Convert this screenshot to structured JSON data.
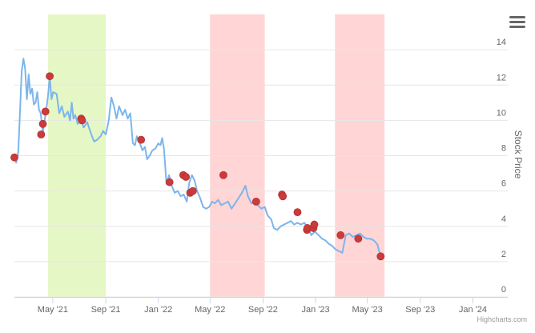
{
  "chart_data": {
    "type": "line",
    "ylabel": "Stock Price",
    "ylim": [
      0,
      16
    ],
    "yticks": [
      0,
      2,
      4,
      6,
      8,
      10,
      12,
      14
    ],
    "xlim": [
      "2021-02-01",
      "2024-03-22"
    ],
    "xticks": [
      {
        "date": "2021-05-01",
        "label": "May '21"
      },
      {
        "date": "2021-09-01",
        "label": "Sep '21"
      },
      {
        "date": "2022-01-01",
        "label": "Jan '22"
      },
      {
        "date": "2022-05-01",
        "label": "May '22"
      },
      {
        "date": "2022-09-01",
        "label": "Sep '22"
      },
      {
        "date": "2023-01-01",
        "label": "Jan '23"
      },
      {
        "date": "2023-05-01",
        "label": "May '23"
      },
      {
        "date": "2023-09-01",
        "label": "Sep '23"
      },
      {
        "date": "2024-01-01",
        "label": "Jan '24"
      }
    ],
    "grid": true,
    "series": [
      {
        "line_color": "#7cb5ec",
        "points": [
          [
            "2021-02-01",
            7.9
          ],
          [
            "2021-02-05",
            7.6
          ],
          [
            "2021-02-10",
            8.2
          ],
          [
            "2021-02-14",
            10.5
          ],
          [
            "2021-02-18",
            12.8
          ],
          [
            "2021-02-22",
            13.5
          ],
          [
            "2021-02-26",
            12.9
          ],
          [
            "2021-03-02",
            11.2
          ],
          [
            "2021-03-06",
            12.6
          ],
          [
            "2021-03-10",
            11.5
          ],
          [
            "2021-03-14",
            11.8
          ],
          [
            "2021-03-18",
            10.9
          ],
          [
            "2021-03-22",
            11.0
          ],
          [
            "2021-03-26",
            11.6
          ],
          [
            "2021-03-30",
            10.6
          ],
          [
            "2021-04-03",
            10.4
          ],
          [
            "2021-04-08",
            9.3
          ],
          [
            "2021-04-12",
            10.0
          ],
          [
            "2021-04-16",
            10.6
          ],
          [
            "2021-04-20",
            11.4
          ],
          [
            "2021-04-24",
            12.5
          ],
          [
            "2021-04-28",
            11.2
          ],
          [
            "2021-05-02",
            11.6
          ],
          [
            "2021-05-10",
            11.5
          ],
          [
            "2021-05-16",
            10.4
          ],
          [
            "2021-05-22",
            10.8
          ],
          [
            "2021-05-28",
            10.2
          ],
          [
            "2021-06-05",
            10.5
          ],
          [
            "2021-06-10",
            10.0
          ],
          [
            "2021-06-14",
            11.0
          ],
          [
            "2021-06-18",
            10.1
          ],
          [
            "2021-06-22",
            10.3
          ],
          [
            "2021-06-28",
            9.8
          ],
          [
            "2021-07-05",
            10.0
          ],
          [
            "2021-07-12",
            9.6
          ],
          [
            "2021-07-20",
            9.9
          ],
          [
            "2021-07-28",
            9.3
          ],
          [
            "2021-08-05",
            8.8
          ],
          [
            "2021-08-12",
            8.9
          ],
          [
            "2021-08-20",
            9.1
          ],
          [
            "2021-08-26",
            9.4
          ],
          [
            "2021-09-01",
            9.2
          ],
          [
            "2021-09-08",
            10.0
          ],
          [
            "2021-09-14",
            11.3
          ],
          [
            "2021-09-20",
            10.8
          ],
          [
            "2021-09-26",
            10.1
          ],
          [
            "2021-10-02",
            10.8
          ],
          [
            "2021-10-10",
            10.3
          ],
          [
            "2021-10-16",
            10.6
          ],
          [
            "2021-10-22",
            10.1
          ],
          [
            "2021-10-28",
            10.4
          ],
          [
            "2021-11-03",
            8.7
          ],
          [
            "2021-11-08",
            8.6
          ],
          [
            "2021-11-12",
            9.1
          ],
          [
            "2021-11-18",
            8.8
          ],
          [
            "2021-11-25",
            8.3
          ],
          [
            "2021-12-01",
            8.5
          ],
          [
            "2021-12-06",
            7.8
          ],
          [
            "2021-12-12",
            8.0
          ],
          [
            "2021-12-18",
            8.3
          ],
          [
            "2021-12-25",
            8.4
          ],
          [
            "2022-01-01",
            8.7
          ],
          [
            "2022-01-06",
            8.6
          ],
          [
            "2022-01-10",
            9.0
          ],
          [
            "2022-01-14",
            8.4
          ],
          [
            "2022-01-20",
            6.4
          ],
          [
            "2022-01-26",
            6.9
          ],
          [
            "2022-02-01",
            6.3
          ],
          [
            "2022-02-08",
            5.9
          ],
          [
            "2022-02-15",
            6.0
          ],
          [
            "2022-02-22",
            5.7
          ],
          [
            "2022-03-01",
            5.8
          ],
          [
            "2022-03-08",
            5.4
          ],
          [
            "2022-03-14",
            6.5
          ],
          [
            "2022-03-20",
            6.9
          ],
          [
            "2022-03-26",
            6.6
          ],
          [
            "2022-04-01",
            6.0
          ],
          [
            "2022-04-08",
            5.6
          ],
          [
            "2022-04-15",
            5.1
          ],
          [
            "2022-04-22",
            5.0
          ],
          [
            "2022-04-29",
            5.1
          ],
          [
            "2022-05-06",
            5.4
          ],
          [
            "2022-05-12",
            5.3
          ],
          [
            "2022-05-20",
            5.5
          ],
          [
            "2022-05-27",
            5.2
          ],
          [
            "2022-06-04",
            5.3
          ],
          [
            "2022-06-12",
            5.4
          ],
          [
            "2022-06-20",
            5.0
          ],
          [
            "2022-06-28",
            5.3
          ],
          [
            "2022-07-06",
            5.6
          ],
          [
            "2022-07-14",
            5.9
          ],
          [
            "2022-07-22",
            6.3
          ],
          [
            "2022-07-28",
            5.7
          ],
          [
            "2022-08-05",
            5.3
          ],
          [
            "2022-08-12",
            5.4
          ],
          [
            "2022-08-20",
            5.2
          ],
          [
            "2022-08-28",
            5.0
          ],
          [
            "2022-09-05",
            5.1
          ],
          [
            "2022-09-12",
            4.6
          ],
          [
            "2022-09-20",
            4.4
          ],
          [
            "2022-09-26",
            3.9
          ],
          [
            "2022-10-04",
            3.8
          ],
          [
            "2022-10-12",
            4.0
          ],
          [
            "2022-10-20",
            4.1
          ],
          [
            "2022-10-28",
            4.2
          ],
          [
            "2022-11-05",
            4.3
          ],
          [
            "2022-11-12",
            4.1
          ],
          [
            "2022-11-20",
            4.2
          ],
          [
            "2022-11-28",
            4.1
          ],
          [
            "2022-12-06",
            4.2
          ],
          [
            "2022-12-14",
            3.9
          ],
          [
            "2022-12-22",
            3.5
          ],
          [
            "2022-12-30",
            3.7
          ],
          [
            "2023-01-08",
            3.5
          ],
          [
            "2023-01-16",
            3.3
          ],
          [
            "2023-01-24",
            3.2
          ],
          [
            "2023-02-01",
            3.0
          ],
          [
            "2023-02-08",
            2.9
          ],
          [
            "2023-02-16",
            2.7
          ],
          [
            "2023-02-24",
            2.6
          ],
          [
            "2023-03-04",
            2.5
          ],
          [
            "2023-03-12",
            3.5
          ],
          [
            "2023-03-20",
            3.6
          ],
          [
            "2023-03-28",
            3.4
          ],
          [
            "2023-04-06",
            3.5
          ],
          [
            "2023-04-14",
            3.6
          ],
          [
            "2023-04-22",
            3.4
          ],
          [
            "2023-04-30",
            3.3
          ],
          [
            "2023-05-08",
            3.3
          ],
          [
            "2023-05-16",
            3.2
          ],
          [
            "2023-05-24",
            3.0
          ],
          [
            "2023-06-01",
            2.3
          ]
        ]
      }
    ],
    "markers": [
      {
        "date": "2021-02-01",
        "value": 7.9
      },
      {
        "date": "2021-04-04",
        "value": 9.2
      },
      {
        "date": "2021-04-08",
        "value": 9.8
      },
      {
        "date": "2021-04-14",
        "value": 10.5
      },
      {
        "date": "2021-04-24",
        "value": 12.5
      },
      {
        "date": "2021-07-06",
        "value": 10.1
      },
      {
        "date": "2021-07-08",
        "value": 10.0
      },
      {
        "date": "2021-11-22",
        "value": 8.9
      },
      {
        "date": "2022-01-27",
        "value": 6.5
      },
      {
        "date": "2022-02-28",
        "value": 6.9
      },
      {
        "date": "2022-03-06",
        "value": 6.8
      },
      {
        "date": "2022-03-16",
        "value": 5.9
      },
      {
        "date": "2022-03-22",
        "value": 6.0
      },
      {
        "date": "2022-06-01",
        "value": 6.9
      },
      {
        "date": "2022-08-16",
        "value": 5.4
      },
      {
        "date": "2022-10-15",
        "value": 5.8
      },
      {
        "date": "2022-10-17",
        "value": 5.7
      },
      {
        "date": "2022-11-20",
        "value": 4.8
      },
      {
        "date": "2022-12-12",
        "value": 3.8
      },
      {
        "date": "2022-12-13",
        "value": 3.9
      },
      {
        "date": "2022-12-27",
        "value": 3.9
      },
      {
        "date": "2022-12-29",
        "value": 4.1
      },
      {
        "date": "2023-02-28",
        "value": 3.5
      },
      {
        "date": "2023-04-10",
        "value": 3.3
      },
      {
        "date": "2023-06-01",
        "value": 2.3
      }
    ],
    "bands": [
      {
        "from": "2021-04-20",
        "to": "2021-09-01",
        "color": "#e6f7c6"
      },
      {
        "from": "2022-05-01",
        "to": "2022-09-05",
        "color": "#ffd5d5"
      },
      {
        "from": "2023-02-15",
        "to": "2023-06-10",
        "color": "#ffd5d5"
      }
    ],
    "marker_color": "#cc3b3b"
  },
  "credits": "Highcharts.com",
  "menu_icon": "hamburger-menu-icon"
}
